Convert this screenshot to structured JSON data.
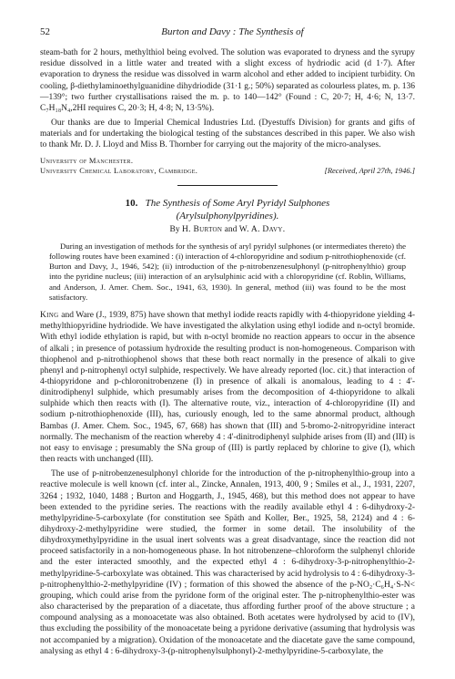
{
  "page_number": "52",
  "running_head": "Burton and Davy : The Synthesis of",
  "top_section": {
    "para1": "steam-bath for 2 hours, methylthiol being evolved. The solution was evaporated to dryness and the syrupy residue dissolved in a little water and treated with a slight excess of hydriodic acid (d 1·7). After evaporation to dryness the residue was dissolved in warm alcohol and ether added to incipient turbidity. On cooling, β-diethylaminoethylguanidine dihydriodide (31·1 g.; 50%) separated as colourless plates, m. p. 136—139°; two further crystallisations raised the m. p. to 140—142° (Found : C, 20·7; H, 4·6; N, 13·7. C₇H₁₈N₄,2HI requires C, 20·3; H, 4·8; N, 13·5%).",
    "para2": "Our thanks are due to Imperial Chemical Industries Ltd. (Dyestuffs Division) for grants and gifts of materials and for undertaking the biological testing of the substances described in this paper. We also wish to thank Mr. D. J. Lloyd and Miss B. Thornber for carrying out the majority of the micro-analyses.",
    "affil1": "University of Manchester.",
    "affil2": "University Chemical Laboratory, Cambridge.",
    "received": "[Received, April 27th, 1946.]"
  },
  "article": {
    "number": "10.",
    "title_line1": "The Synthesis of Some Aryl Pyridyl Sulphones",
    "title_line2": "(Arylsulphonylpyridines).",
    "authors_by": "By",
    "author1": "H. Burton",
    "authors_and": "and",
    "author2": "W. A. Davy.",
    "abstract": "During an investigation of methods for the synthesis of aryl pyridyl sulphones (or intermediates thereto) the following routes have been examined : (i) interaction of 4-chloropyridine and sodium p-nitrothiophenoxide (cf. Burton and Davy, J., 1946, 542); (ii) introduction of the p-nitrobenzenesulphonyl (p-nitrophenylthio) group into the pyridine nucleus; (iii) interaction of an arylsulphinic acid with a chloropyridine (cf. Roblin, Williams, and Anderson, J. Amer. Chem. Soc., 1941, 63, 1930). In general, method (iii) was found to be the most satisfactory.",
    "body1": "King and Ware (J., 1939, 875) have shown that methyl iodide reacts rapidly with 4-thiopyridone yielding 4-methylthiopyridine hydriodide. We have investigated the alkylation using ethyl iodide and n-octyl bromide. With ethyl iodide ethylation is rapid, but with n-octyl bromide no reaction appears to occur in the absence of alkali ; in presence of potassium hydroxide the resulting product is non-homogeneous. Comparison with thiophenol and p-nitrothiophenol shows that these both react normally in the presence of alkali to give phenyl and p-nitrophenyl octyl sulphide, respectively. We have already reported (loc. cit.) that interaction of 4-thiopyridone and p-chloronitrobenzene (I) in presence of alkali is anomalous, leading to 4 : 4'-dinitrodiphenyl sulphide, which presumably arises from the decomposition of 4-thiopyridone to alkali sulphide which then reacts with (I). The alternative route, viz., interaction of 4-chloropyridine (II) and sodium p-nitrothiophenoxide (III), has, curiously enough, led to the same abnormal product, although Bambas (J. Amer. Chem. Soc., 1945, 67, 668) has shown that (III) and 5-bromo-2-nitropyridine interact normally. The mechanism of the reaction whereby 4 : 4'-dinitrodiphenyl sulphide arises from (II) and (III) is not easy to envisage ; presumably the SNa group of (III) is partly replaced by chlorine to give (I), which then reacts with unchanged (III).",
    "body2": "The use of p-nitrobenzenesulphonyl chloride for the introduction of the p-nitrophenylthio-group into a reactive molecule is well known (cf. inter al., Zincke, Annalen, 1913, 400, 9 ; Smiles et al., J., 1931, 2207, 3264 ; 1932, 1040, 1488 ; Burton and Hoggarth, J., 1945, 468), but this method does not appear to have been extended to the pyridine series. The reactions with the readily available ethyl 4 : 6-dihydroxy-2-methylpyridine-5-carboxylate (for constitution see Späth and Koller, Ber., 1925, 58, 2124) and 4 : 6-dihydroxy-2-methylpyridine were studied, the former in some detail. The insolubility of the dihydroxymethylpyridine in the usual inert solvents was a great disadvantage, since the reaction did not proceed satisfactorily in a non-homogeneous phase. In hot nitrobenzene–chloroform the sulphenyl chloride and the ester interacted smoothly, and the expected ethyl 4 : 6-dihydroxy-3-p-nitrophenylthio-2-methylpyridine-5-carboxylate was obtained. This was characterised by acid hydrolysis to 4 : 6-dihydroxy-3-p-nitrophenylthio-2-methylpyridine (IV) ; formation of this showed the absence of the p-NO₂·C₆H₄·S-N< grouping, which could arise from the pyridone form of the original ester. The p-nitrophenylthio-ester was also characterised by the preparation of a diacetate, thus affording further proof of the above structure ; a compound analysing as a monoacetate was also obtained. Both acetates were hydrolysed by acid to (IV), thus excluding the possibility of the monoacetate being a pyridone derivative (assuming that hydrolysis was not accompanied by a migration). Oxidation of the monoacetate and the diacetate gave the same compound, analysing as ethyl 4 : 6-dihydroxy-3-(p-nitrophenylsulphonyl)-2-methylpyridine-5-carboxylate, the"
  }
}
